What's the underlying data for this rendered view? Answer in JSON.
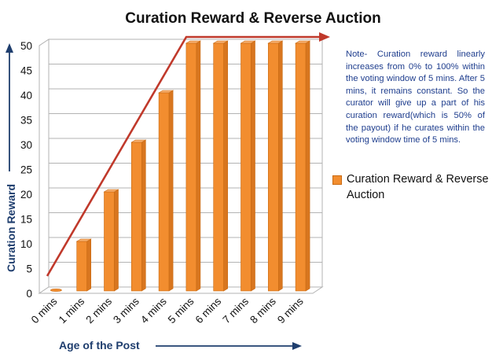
{
  "chart_data": {
    "type": "bar",
    "title": "Curation Reward & Reverse Auction",
    "xlabel": "Age of the Post",
    "ylabel": "Curation Reward",
    "categories": [
      "0 mins",
      "1 mins",
      "2 mins",
      "3 mins",
      "4 mins",
      "5 mins",
      "6 mins",
      "7 mins",
      "8 mins",
      "9 mins"
    ],
    "series": [
      {
        "name": "Curation Reward & Reverse Auction",
        "values": [
          0,
          10,
          20,
          30,
          40,
          50,
          50,
          50,
          50,
          50
        ]
      }
    ],
    "ylim": [
      0,
      50
    ],
    "yticks": [
      "0",
      "5",
      "10",
      "15",
      "20",
      "25",
      "30",
      "35",
      "40",
      "45",
      "50"
    ],
    "grid": true,
    "legend_position": "right",
    "note": "Note- Curation reward linearly increases from 0% to 100% within the voting window of 5 mins. After 5 mins, it remains constant. So the curator will give up a part of his curation reward(which is 50% of the payout) if he curates within the voting window time of 5 mins.",
    "colors": {
      "bar": "#f28d2f",
      "trend_line": "#c0392b",
      "axis_arrow": "#1f3e6e",
      "note_text": "#1f3e8e"
    }
  }
}
